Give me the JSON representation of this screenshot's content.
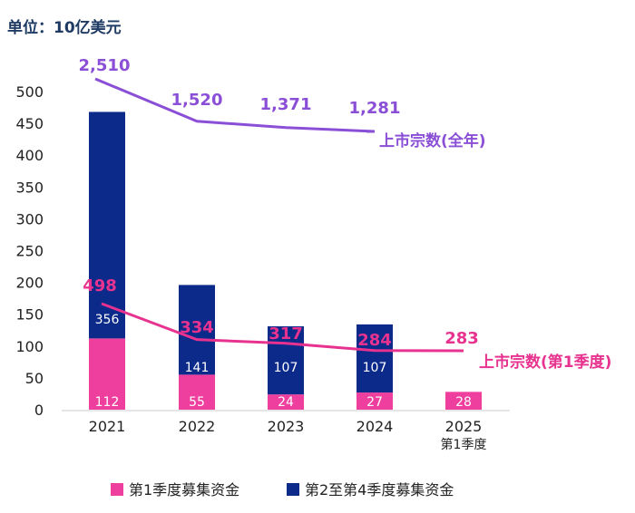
{
  "chart_data": {
    "type": "bar",
    "stacked": true,
    "unit_label": "单位：10亿美元",
    "categories": [
      "2021",
      "2022",
      "2023",
      "2024",
      "2025"
    ],
    "category_sublabels": [
      "",
      "",
      "",
      "",
      "第1季度"
    ],
    "ylim": [
      0,
      500
    ],
    "yticks": [
      0,
      50,
      100,
      150,
      200,
      250,
      300,
      350,
      400,
      450,
      500
    ],
    "series": [
      {
        "name": "第1季度募集资金",
        "color": "#ee3f9f",
        "values": [
          112,
          55,
          24,
          27,
          28
        ]
      },
      {
        "name": "第2至第4季度募集资金",
        "color": "#0b2a8a",
        "values": [
          356,
          141,
          107,
          107,
          null
        ]
      }
    ],
    "bar_value_labels": [
      [
        "112",
        "55",
        "24",
        "27",
        "28"
      ],
      [
        "356",
        "141",
        "107",
        "107",
        ""
      ]
    ],
    "lines": [
      {
        "name": "上市宗数(全年)",
        "color": "#8a4fd6",
        "values": [
          2510,
          1520,
          1371,
          1281
        ],
        "value_labels": [
          "2,510",
          "1,520",
          "1,371",
          "1,281"
        ]
      },
      {
        "name": "上市宗数(第1季度)",
        "color": "#e8328f",
        "values": [
          498,
          334,
          317,
          284,
          283
        ],
        "value_labels": [
          "498",
          "334",
          "317",
          "284",
          "283"
        ]
      }
    ]
  }
}
